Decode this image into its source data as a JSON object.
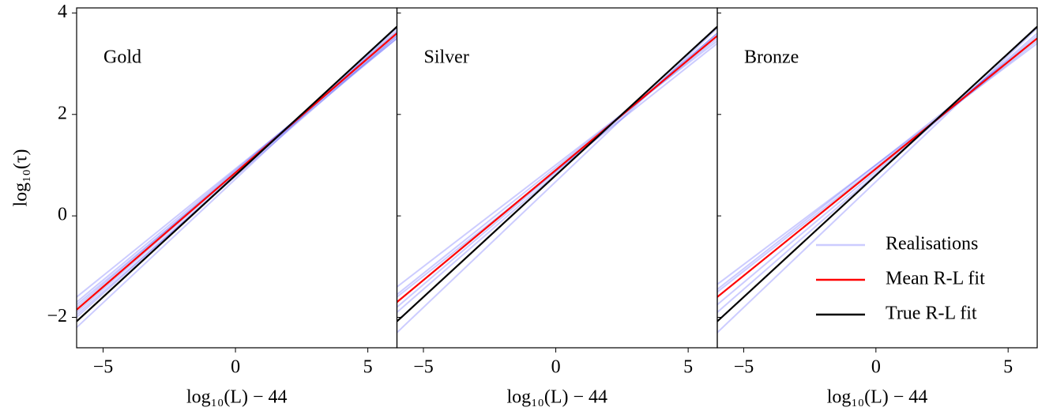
{
  "chart_data": [
    {
      "type": "line",
      "label": "Gold",
      "x": [
        -6,
        6.1
      ],
      "xlim": [
        -6,
        6.1
      ],
      "ylim": [
        -2.6,
        4.1
      ],
      "xticks": [
        {
          "value": -5,
          "label": "−5"
        },
        0,
        5
      ],
      "yticks": [
        {
          "value": -2,
          "label": "−2"
        },
        0,
        2,
        4
      ],
      "xlabel": "log₁₀(L) − 44",
      "ylabel": "log₁₀(τ)",
      "series": [
        {
          "name": "Realisations",
          "color": "#0000ff",
          "alpha": 0.2,
          "lines": [
            [
              -1.6,
              3.5
            ],
            [
              -1.7,
              3.55
            ],
            [
              -1.8,
              3.6
            ],
            [
              -1.9,
              3.62
            ],
            [
              -2.0,
              3.65
            ],
            [
              -2.2,
              3.7
            ],
            [
              -1.75,
              3.5
            ],
            [
              -1.95,
              3.55
            ]
          ]
        },
        {
          "name": "Mean R-L fit",
          "color": "#ff0000",
          "values": [
            -1.85,
            3.6
          ]
        },
        {
          "name": "True R-L fit",
          "color": "#000000",
          "values": [
            -2.08,
            3.73
          ]
        }
      ]
    },
    {
      "type": "line",
      "label": "Silver",
      "x": [
        -6,
        6.1
      ],
      "xlim": [
        -6,
        6.1
      ],
      "ylim": [
        -2.6,
        4.1
      ],
      "xticks": [
        {
          "value": -5,
          "label": "−5"
        },
        0,
        5
      ],
      "xlabel": "log₁₀(L) − 44",
      "series": [
        {
          "name": "Realisations",
          "color": "#0000ff",
          "alpha": 0.2,
          "lines": [
            [
              -1.4,
              3.45
            ],
            [
              -1.55,
              3.5
            ],
            [
              -1.7,
              3.55
            ],
            [
              -1.8,
              3.6
            ],
            [
              -1.9,
              3.6
            ],
            [
              -2.3,
              3.7
            ],
            [
              -1.6,
              3.4
            ]
          ]
        },
        {
          "name": "Mean R-L fit",
          "color": "#ff0000",
          "values": [
            -1.7,
            3.55
          ]
        },
        {
          "name": "True R-L fit",
          "color": "#000000",
          "values": [
            -2.08,
            3.73
          ]
        }
      ]
    },
    {
      "type": "line",
      "label": "Bronze",
      "x": [
        -6,
        6.1
      ],
      "xlim": [
        -6,
        6.1
      ],
      "ylim": [
        -2.6,
        4.1
      ],
      "xticks": [
        {
          "value": -5,
          "label": "−5"
        },
        0,
        5
      ],
      "xlabel": "log₁₀(L) − 44",
      "legend": "lower right",
      "series": [
        {
          "name": "Realisations",
          "color": "#0000ff",
          "alpha": 0.2,
          "lines": [
            [
              -1.35,
              3.4
            ],
            [
              -1.5,
              3.45
            ],
            [
              -1.6,
              3.5
            ],
            [
              -1.75,
              3.55
            ],
            [
              -1.9,
              3.6
            ],
            [
              -2.3,
              3.7
            ],
            [
              -1.45,
              3.5
            ]
          ]
        },
        {
          "name": "Mean R-L fit",
          "color": "#ff0000",
          "values": [
            -1.6,
            3.5
          ]
        },
        {
          "name": "True R-L fit",
          "color": "#000000",
          "values": [
            -2.08,
            3.73
          ]
        }
      ]
    }
  ]
}
